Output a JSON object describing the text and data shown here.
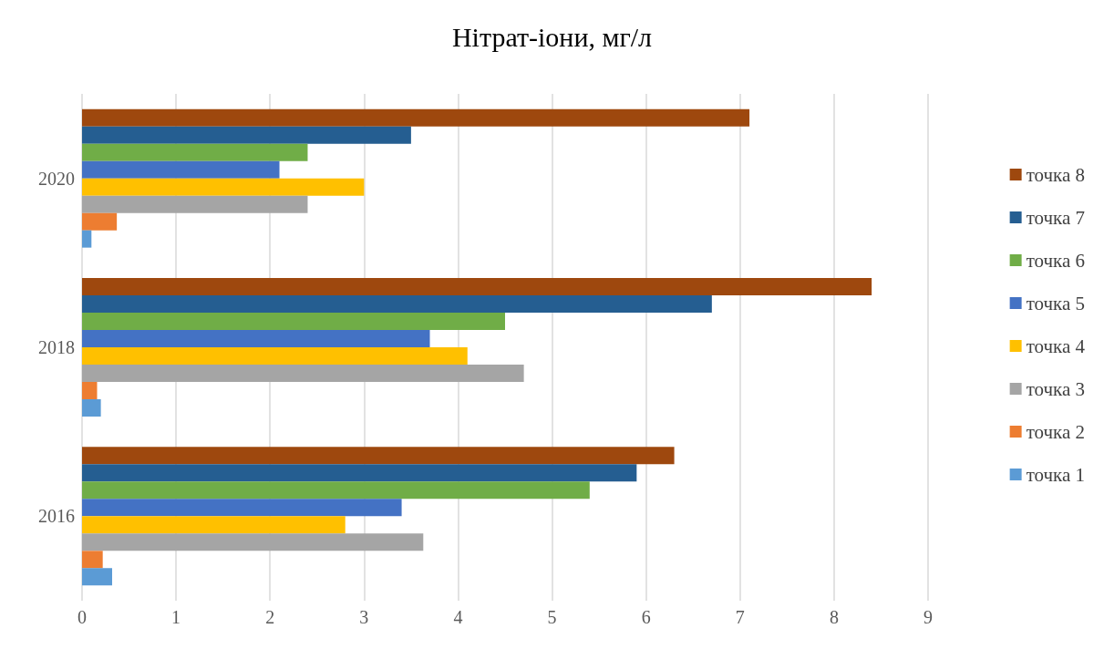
{
  "chart_data": {
    "type": "bar",
    "orientation": "horizontal",
    "title": "Нітрат-іони, мг/л",
    "categories": [
      "2020",
      "2018",
      "2016"
    ],
    "series": [
      {
        "name": "точка 1",
        "color": "#5b9bd5",
        "values": [
          0.1,
          0.2,
          0.32
        ]
      },
      {
        "name": "точка 2",
        "color": "#ed7d31",
        "values": [
          0.37,
          0.16,
          0.22
        ]
      },
      {
        "name": "точка 3",
        "color": "#a5a5a5",
        "values": [
          2.4,
          4.7,
          3.63
        ]
      },
      {
        "name": "точка 4",
        "color": "#ffc000",
        "values": [
          3.0,
          4.1,
          2.8
        ]
      },
      {
        "name": "точка 5",
        "color": "#4472c4",
        "values": [
          2.1,
          3.7,
          3.4
        ]
      },
      {
        "name": "точка 6",
        "color": "#70ad47",
        "values": [
          2.4,
          4.5,
          5.4
        ]
      },
      {
        "name": "точка 7",
        "color": "#255e91",
        "values": [
          3.5,
          6.7,
          5.9
        ]
      },
      {
        "name": "точка 8",
        "color": "#9e480e",
        "values": [
          7.1,
          8.4,
          6.3
        ]
      }
    ],
    "xlim": [
      0,
      9
    ],
    "xticks": [
      0,
      1,
      2,
      3,
      4,
      5,
      6,
      7,
      8,
      9
    ],
    "grid": "x",
    "legend": "right"
  }
}
